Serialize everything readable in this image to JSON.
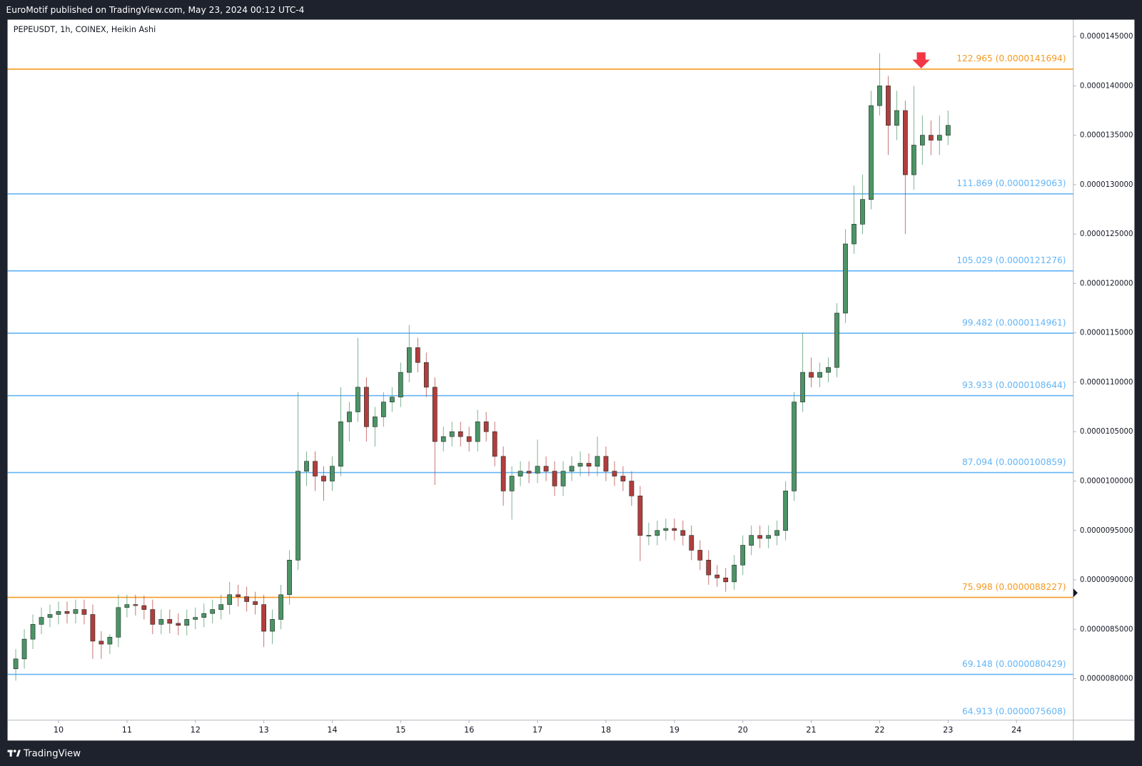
{
  "header": {
    "text": "EuroMotif published on TradingView.com, May 23, 2024 00:12 UTC-4"
  },
  "footer": {
    "brand": "TradingView"
  },
  "chart_data": {
    "type": "candlestick",
    "title": "PEPEUSDT, 1h, COINEX, Heikin Ashi",
    "up_color": "#4c9466",
    "down_color": "#b33d3d",
    "x": [
      9.375,
      9.5,
      9.625,
      9.75,
      9.875,
      10,
      10.125,
      10.25,
      10.375,
      10.5,
      10.625,
      10.75,
      10.875,
      11,
      11.125,
      11.25,
      11.375,
      11.5,
      11.625,
      11.75,
      11.875,
      12,
      12.125,
      12.25,
      12.375,
      12.5,
      12.625,
      12.75,
      12.875,
      13,
      13.125,
      13.25,
      13.375,
      13.5,
      13.625,
      13.75,
      13.875,
      14,
      14.125,
      14.25,
      14.375,
      14.5,
      14.625,
      14.75,
      14.875,
      15,
      15.125,
      15.25,
      15.375,
      15.5,
      15.625,
      15.75,
      15.875,
      16,
      16.125,
      16.25,
      16.375,
      16.5,
      16.625,
      16.75,
      16.875,
      17,
      17.125,
      17.25,
      17.375,
      17.5,
      17.625,
      17.75,
      17.875,
      18,
      18.125,
      18.25,
      18.375,
      18.5,
      18.625,
      18.75,
      18.875,
      19,
      19.125,
      19.25,
      19.375,
      19.5,
      19.625,
      19.75,
      19.875,
      20,
      20.125,
      20.25,
      20.375,
      20.5,
      20.625,
      20.75,
      20.875,
      21,
      21.125,
      21.25,
      21.375,
      21.5,
      21.625,
      21.75,
      21.875,
      22,
      22.125,
      22.25,
      22.375,
      22.5,
      22.625,
      22.75,
      22.875,
      23
    ],
    "open": [
      8.1e-06,
      8.2e-06,
      8.4e-06,
      8.55e-06,
      8.62e-06,
      8.65e-06,
      8.68e-06,
      8.66e-06,
      8.7e-06,
      8.65e-06,
      8.38e-06,
      8.35e-06,
      8.42e-06,
      8.72e-06,
      8.75e-06,
      8.74e-06,
      8.7e-06,
      8.55e-06,
      8.6e-06,
      8.56e-06,
      8.54e-06,
      8.6e-06,
      8.62e-06,
      8.66e-06,
      8.7e-06,
      8.75e-06,
      8.85e-06,
      8.83e-06,
      8.78e-06,
      8.75e-06,
      8.48e-06,
      8.6e-06,
      8.85e-06,
      9.2e-06,
      1.01e-05,
      1.02e-05,
      1.005e-05,
      1e-05,
      1.015e-05,
      1.06e-05,
      1.07e-05,
      1.095e-05,
      1.055e-05,
      1.065e-05,
      1.08e-05,
      1.085e-05,
      1.11e-05,
      1.135e-05,
      1.12e-05,
      1.095e-05,
      1.04e-05,
      1.045e-05,
      1.05e-05,
      1.045e-05,
      1.04e-05,
      1.06e-05,
      1.05e-05,
      1.025e-05,
      9.9e-06,
      1.005e-05,
      1.01e-05,
      1.008e-05,
      1.015e-05,
      1.01e-05,
      9.95e-06,
      1.01e-05,
      1.015e-05,
      1.018e-05,
      1.015e-05,
      1.025e-05,
      1.01e-05,
      1.005e-05,
      1e-05,
      9.85e-06,
      9.45e-06,
      9.45e-06,
      9.5e-06,
      9.52e-06,
      9.5e-06,
      9.45e-06,
      9.3e-06,
      9.2e-06,
      9.05e-06,
      9.02e-06,
      8.98e-06,
      9.15e-06,
      9.35e-06,
      9.45e-06,
      9.42e-06,
      9.45e-06,
      9.5e-06,
      9.9e-06,
      1.08e-05,
      1.11e-05,
      1.105e-05,
      1.11e-05,
      1.115e-05,
      1.17e-05,
      1.24e-05,
      1.26e-05,
      1.285e-05,
      1.38e-05,
      1.4e-05,
      1.36e-05,
      1.375e-05,
      1.31e-05,
      1.34e-05,
      1.35e-05,
      1.345e-05,
      1.35e-05
    ],
    "high": [
      8.3e-06,
      8.5e-06,
      8.65e-06,
      8.72e-06,
      8.75e-06,
      8.78e-06,
      8.78e-06,
      8.8e-06,
      8.8e-06,
      8.75e-06,
      8.48e-06,
      8.45e-06,
      8.85e-06,
      8.85e-06,
      8.85e-06,
      8.84e-06,
      8.8e-06,
      8.7e-06,
      8.7e-06,
      8.66e-06,
      8.7e-06,
      8.72e-06,
      8.76e-06,
      8.8e-06,
      8.85e-06,
      8.98e-06,
      8.95e-06,
      8.93e-06,
      8.88e-06,
      8.85e-06,
      8.7e-06,
      8.95e-06,
      9.3e-06,
      1.09e-05,
      1.03e-05,
      1.03e-05,
      1.015e-05,
      1.025e-05,
      1.095e-05,
      1.08e-05,
      1.145e-05,
      1.105e-05,
      1.075e-05,
      1.09e-05,
      1.095e-05,
      1.12e-05,
      1.158e-05,
      1.145e-05,
      1.13e-05,
      1.105e-05,
      1.055e-05,
      1.06e-05,
      1.06e-05,
      1.055e-05,
      1.072e-05,
      1.07e-05,
      1.06e-05,
      1.035e-05,
      1.015e-05,
      1.02e-05,
      1.02e-05,
      1.042e-05,
      1.025e-05,
      1.02e-05,
      1.02e-05,
      1.025e-05,
      1.03e-05,
      1.028e-05,
      1.045e-05,
      1.035e-05,
      1.02e-05,
      1.015e-05,
      1.01e-05,
      9.95e-06,
      9.58e-06,
      9.6e-06,
      9.62e-06,
      9.62e-06,
      9.6e-06,
      9.55e-06,
      9.4e-06,
      9.3e-06,
      9.15e-06,
      9.12e-06,
      9.25e-06,
      9.45e-06,
      9.55e-06,
      9.55e-06,
      9.55e-06,
      9.6e-06,
      1e-05,
      1.09e-05,
      1.15e-05,
      1.125e-05,
      1.12e-05,
      1.125e-05,
      1.18e-05,
      1.255e-05,
      1.299e-05,
      1.31e-05,
      1.395e-05,
      1.433e-05,
      1.41e-05,
      1.395e-05,
      1.385e-05,
      1.4e-05,
      1.37e-05,
      1.365e-05,
      1.37e-05,
      1.375e-05
    ],
    "low": [
      7.98e-06,
      8.1e-06,
      8.3e-06,
      8.45e-06,
      8.52e-06,
      8.55e-06,
      8.56e-06,
      8.56e-06,
      8.55e-06,
      8.2e-06,
      8.2e-06,
      8.25e-06,
      8.32e-06,
      8.62e-06,
      8.64e-06,
      8.6e-06,
      8.45e-06,
      8.45e-06,
      8.46e-06,
      8.44e-06,
      8.44e-06,
      8.5e-06,
      8.52e-06,
      8.56e-06,
      8.6e-06,
      8.65e-06,
      8.73e-06,
      8.68e-06,
      8.65e-06,
      8.32e-06,
      8.35e-06,
      8.5e-06,
      8.75e-06,
      9.1e-06,
      9.95e-06,
      9.9e-06,
      9.8e-06,
      9.9e-06,
      1.005e-05,
      1.04e-05,
      1.06e-05,
      1.04e-05,
      1.035e-05,
      1.055e-05,
      1.07e-05,
      1.075e-05,
      1.1e-05,
      1.11e-05,
      1.085e-05,
      9.96e-06,
      1.03e-05,
      1.035e-05,
      1.035e-05,
      1.03e-05,
      1.03e-05,
      1.04e-05,
      1.015e-05,
      9.75e-06,
      9.61e-06,
      9.95e-06,
      9.98e-06,
      9.98e-06,
      1e-05,
      9.85e-06,
      9.85e-06,
      1e-05,
      1.005e-05,
      1.005e-05,
      1.005e-05,
      1e-05,
      9.95e-06,
      9.9e-06,
      9.75e-06,
      9.19e-06,
      9.35e-06,
      9.35e-06,
      9.4e-06,
      9.4e-06,
      9.35e-06,
      9.2e-06,
      9.1e-06,
      8.95e-06,
      8.93e-06,
      8.88e-06,
      8.9e-06,
      9.05e-06,
      9.25e-06,
      9.32e-06,
      9.32e-06,
      9.35e-06,
      9.4e-06,
      9.8e-06,
      1.07e-05,
      1.095e-05,
      1.095e-05,
      1.1e-05,
      1.105e-05,
      1.16e-05,
      1.23e-05,
      1.25e-05,
      1.275e-05,
      1.37e-05,
      1.33e-05,
      1.345e-05,
      1.25e-05,
      1.295e-05,
      1.32e-05,
      1.33e-05,
      1.33e-05,
      1.34e-05
    ],
    "close": [
      8.2e-06,
      8.4e-06,
      8.55e-06,
      8.62e-06,
      8.65e-06,
      8.68e-06,
      8.66e-06,
      8.7e-06,
      8.65e-06,
      8.38e-06,
      8.35e-06,
      8.42e-06,
      8.72e-06,
      8.75e-06,
      8.74e-06,
      8.7e-06,
      8.55e-06,
      8.6e-06,
      8.56e-06,
      8.54e-06,
      8.6e-06,
      8.62e-06,
      8.66e-06,
      8.7e-06,
      8.75e-06,
      8.85e-06,
      8.83e-06,
      8.78e-06,
      8.75e-06,
      8.48e-06,
      8.6e-06,
      8.85e-06,
      9.2e-06,
      1.01e-05,
      1.02e-05,
      1.005e-05,
      1e-05,
      1.015e-05,
      1.06e-05,
      1.07e-05,
      1.095e-05,
      1.055e-05,
      1.065e-05,
      1.08e-05,
      1.085e-05,
      1.11e-05,
      1.135e-05,
      1.12e-05,
      1.095e-05,
      1.04e-05,
      1.045e-05,
      1.05e-05,
      1.045e-05,
      1.04e-05,
      1.06e-05,
      1.05e-05,
      1.025e-05,
      9.9e-06,
      1.005e-05,
      1.01e-05,
      1.008e-05,
      1.015e-05,
      1.01e-05,
      9.95e-06,
      1.01e-05,
      1.015e-05,
      1.018e-05,
      1.015e-05,
      1.025e-05,
      1.01e-05,
      1.005e-05,
      1e-05,
      9.85e-06,
      9.45e-06,
      9.45e-06,
      9.5e-06,
      9.52e-06,
      9.5e-06,
      9.45e-06,
      9.3e-06,
      9.2e-06,
      9.05e-06,
      9.02e-06,
      8.98e-06,
      9.15e-06,
      9.35e-06,
      9.45e-06,
      9.42e-06,
      9.45e-06,
      9.5e-06,
      9.9e-06,
      1.08e-05,
      1.11e-05,
      1.105e-05,
      1.11e-05,
      1.115e-05,
      1.17e-05,
      1.24e-05,
      1.26e-05,
      1.285e-05,
      1.38e-05,
      1.4e-05,
      1.36e-05,
      1.375e-05,
      1.31e-05,
      1.34e-05,
      1.35e-05,
      1.345e-05,
      1.35e-05,
      1.36e-05
    ],
    "xlim": [
      9.255,
      24.83
    ],
    "xticks": [
      10,
      11,
      12,
      13,
      14,
      15,
      16,
      17,
      18,
      19,
      20,
      21,
      22,
      23,
      24
    ],
    "ylim": [
      7.58e-06,
      1.467e-05
    ],
    "yticks": [
      {
        "value": 8e-06,
        "label": "0.0000080000"
      },
      {
        "value": 8.5e-06,
        "label": "0.0000085000"
      },
      {
        "value": 9e-06,
        "label": "0.0000090000"
      },
      {
        "value": 9.5e-06,
        "label": "0.0000095000"
      },
      {
        "value": 1e-05,
        "label": "0.0000100000"
      },
      {
        "value": 1.05e-05,
        "label": "0.0000105000"
      },
      {
        "value": 1.1e-05,
        "label": "0.0000110000"
      },
      {
        "value": 1.15e-05,
        "label": "0.0000115000"
      },
      {
        "value": 1.2e-05,
        "label": "0.0000120000"
      },
      {
        "value": 1.25e-05,
        "label": "0.0000125000"
      },
      {
        "value": 1.3e-05,
        "label": "0.0000130000"
      },
      {
        "value": 1.35e-05,
        "label": "0.0000135000"
      },
      {
        "value": 1.4e-05,
        "label": "0.0000140000"
      },
      {
        "value": 1.45e-05,
        "label": "0.0000145000"
      }
    ],
    "levels": [
      {
        "value": 1.41694e-05,
        "label": "122.965 (0.0000141694)",
        "color": "#f59a23"
      },
      {
        "value": 1.29063e-05,
        "label": "111.869 (0.0000129063)",
        "color": "#64b5f6"
      },
      {
        "value": 1.21276e-05,
        "label": "105.029 (0.0000121276)",
        "color": "#64b5f6"
      },
      {
        "value": 1.14961e-05,
        "label": "99.482 (0.0000114961)",
        "color": "#64b5f6"
      },
      {
        "value": 1.08644e-05,
        "label": "93.933 (0.0000108644)",
        "color": "#64b5f6"
      },
      {
        "value": 1.00859e-05,
        "label": "87.094 (0.0000100859)",
        "color": "#64b5f6"
      },
      {
        "value": 8.8227e-06,
        "label": "75.998 (0.0000088227)",
        "color": "#f59a23"
      },
      {
        "value": 8.0429e-06,
        "label": "69.148 (0.0000080429)",
        "color": "#64b5f6"
      },
      {
        "value": 7.5608e-06,
        "label": "64.913 (0.0000075608)",
        "color": "#64b5f6"
      }
    ]
  }
}
